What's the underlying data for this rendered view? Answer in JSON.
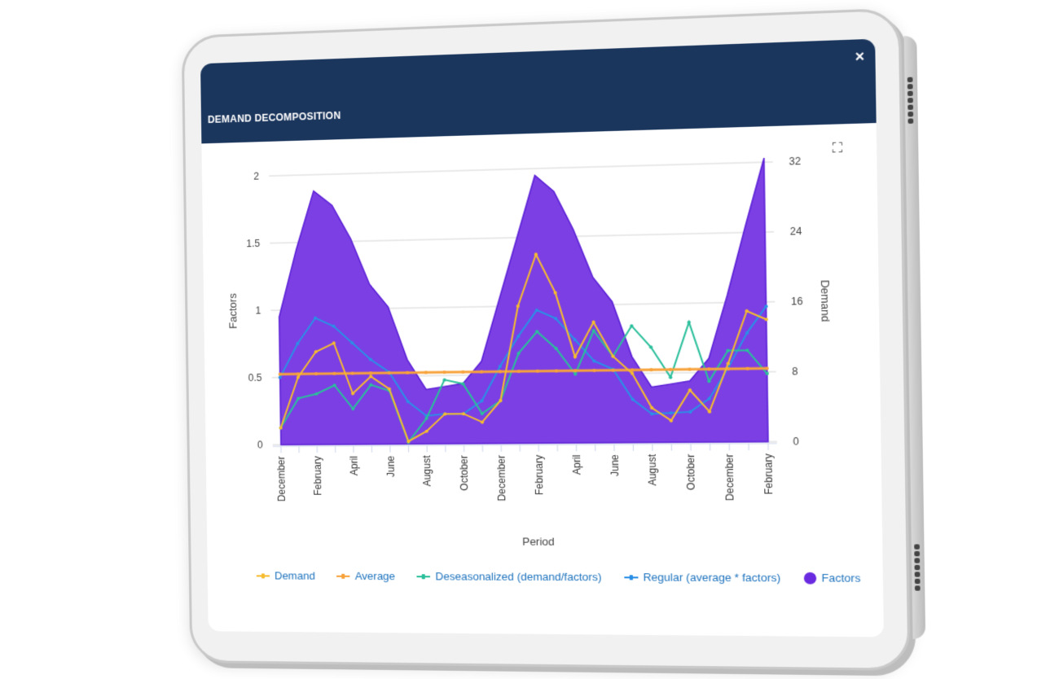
{
  "window": {
    "title": "DEMAND DECOMPOSITION",
    "close_icon": "×",
    "fullscreen_icon": "⛶"
  },
  "colors": {
    "header_bg": "#1b365d",
    "factors": "#7b3fe4",
    "factors_edge": "#5b1fd6",
    "demand": "#f6bb2f",
    "average": "#f7a23a",
    "deseasonalized": "#2bbf9b",
    "regular": "#2b8fe6",
    "legend_text": "#1e73be"
  },
  "legend": [
    {
      "label": "Demand",
      "color": "#f6bb2f",
      "marker": "line"
    },
    {
      "label": "Average",
      "color": "#f7a23a",
      "marker": "line"
    },
    {
      "label": "Deseasonalized (demand/factors)",
      "color": "#2bbf9b",
      "marker": "line"
    },
    {
      "label": "Regular (average * factors)",
      "color": "#2b8fe6",
      "marker": "line"
    },
    {
      "label": "Factors",
      "color": "#6a2be0",
      "marker": "dot"
    }
  ],
  "chart_data": {
    "type": "line",
    "title": "",
    "xlabel": "Period",
    "ylabel_left": "Factors",
    "ylabel_right": "Demand",
    "ylim_left": [
      0,
      2
    ],
    "ylim_right": [
      0,
      32
    ],
    "yticks_left": [
      "0",
      "0.5",
      "1",
      "1.5",
      "2"
    ],
    "yticks_right": [
      "0",
      "8",
      "16",
      "24",
      "32"
    ],
    "grid": true,
    "legend_position": "bottom",
    "x_tick_labels": [
      "December",
      "February",
      "April",
      "June",
      "August",
      "October",
      "December",
      "February",
      "April",
      "June",
      "August",
      "October",
      "December",
      "February"
    ],
    "x": [
      "December",
      "January",
      "February",
      "March",
      "April",
      "May",
      "June",
      "July",
      "August",
      "September",
      "October",
      "November",
      "December",
      "January",
      "February",
      "March",
      "April",
      "May",
      "June",
      "July",
      "August",
      "September",
      "October",
      "November",
      "December",
      "January",
      "February"
    ],
    "series": [
      {
        "name": "Factors",
        "axis": "left",
        "type": "area",
        "values": [
          0.95,
          1.45,
          1.88,
          1.77,
          1.52,
          1.18,
          1.01,
          0.62,
          0.4,
          0.42,
          0.44,
          0.6,
          1.05,
          1.5,
          1.95,
          1.83,
          1.55,
          1.2,
          1.02,
          0.62,
          0.4,
          0.42,
          0.44,
          0.6,
          1.05,
          1.55,
          2.03
        ]
      },
      {
        "name": "Demand",
        "axis": "right",
        "values": [
          2,
          8,
          11,
          12,
          6,
          8,
          6.5,
          0.3,
          1.5,
          3.5,
          3.5,
          2.5,
          5,
          16,
          22,
          17.5,
          10,
          14,
          10,
          8,
          4,
          2.5,
          6,
          3.5,
          9,
          15,
          14
        ]
      },
      {
        "name": "Average",
        "axis": "right",
        "values": [
          8.4,
          8.4,
          8.4,
          8.4,
          8.4,
          8.4,
          8.4,
          8.4,
          8.4,
          8.4,
          8.4,
          8.4,
          8.4,
          8.4,
          8.4,
          8.4,
          8.4,
          8.4,
          8.4,
          8.4,
          8.4,
          8.4,
          8.4,
          8.4,
          8.4,
          8.4,
          8.4
        ]
      },
      {
        "name": "Deseasonalized (demand/factors)",
        "axis": "right",
        "values": [
          2,
          5.5,
          6,
          7,
          4.2,
          7,
          6.3,
          0.2,
          3,
          7.5,
          7,
          3.5,
          5,
          10.5,
          13,
          11,
          8,
          13,
          10,
          13.5,
          11,
          7.5,
          13.8,
          7,
          10.5,
          10.5,
          7.8
        ]
      },
      {
        "name": "Regular (average * factors)",
        "axis": "right",
        "values": [
          8,
          12,
          15,
          14,
          12,
          10,
          8.5,
          5,
          3.3,
          3.5,
          3.5,
          5,
          9,
          12.5,
          15.5,
          14.5,
          12,
          9.5,
          8.5,
          5,
          3.3,
          3.4,
          3.5,
          5,
          8.5,
          12.5,
          15.5
        ]
      }
    ]
  }
}
